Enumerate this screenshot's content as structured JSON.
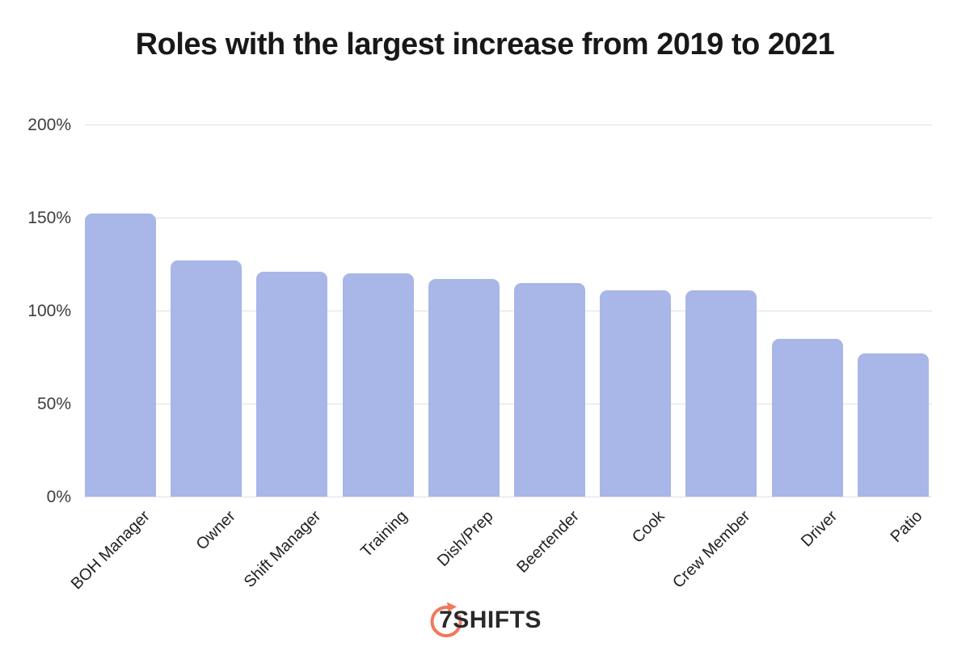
{
  "title": "Roles with the largest increase from 2019 to 2021",
  "chart_data": {
    "type": "bar",
    "title": "Roles with the largest increase from 2019 to 2021",
    "categories": [
      "BOH Manager",
      "Owner",
      "Shift Manager",
      "Training",
      "Dish/Prep",
      "Beertender",
      "Cook",
      "Crew Member",
      "Driver",
      "Patio"
    ],
    "values": [
      152,
      127,
      121,
      120,
      117,
      115,
      111,
      111,
      85,
      77
    ],
    "unit": "%",
    "xlabel": "",
    "ylabel": "",
    "ylim": [
      0,
      200
    ],
    "yticks": [
      {
        "label": "200%",
        "value": 200
      },
      {
        "label": "150%",
        "value": 150
      },
      {
        "label": "100%",
        "value": 100
      },
      {
        "label": "50%",
        "value": 50
      },
      {
        "label": "0%",
        "value": 0
      }
    ],
    "grid": true,
    "legend_position": "none",
    "bar_color": "#a8b6e8"
  },
  "footer": {
    "logo_text": "7SHIFTS",
    "logo_icon": "timer-arrow-icon",
    "logo_color": "#f0795a"
  },
  "colors": {
    "background": "#ffffff",
    "title_text": "#18181b",
    "axis_text": "#3d3d3d",
    "gridline": "#e0e0e0",
    "bar_fill": "#a8b6e8",
    "logo_accent": "#f0795a",
    "logo_text": "#29292c"
  }
}
